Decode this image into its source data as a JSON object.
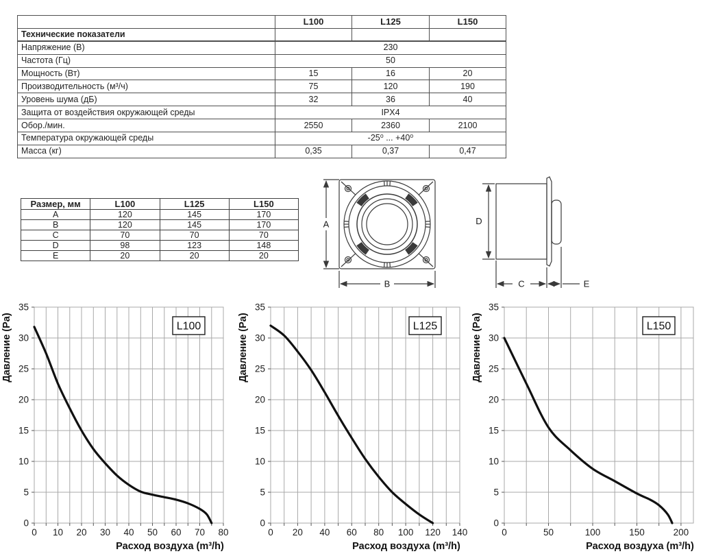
{
  "spec_table": {
    "section_header": "Технические показатели",
    "models": [
      "L100",
      "L125",
      "L150"
    ],
    "rows": [
      {
        "label": "Напряжение (В)",
        "span": true,
        "values": [
          "230"
        ]
      },
      {
        "label": "Частота (Гц)",
        "span": true,
        "values": [
          "50"
        ]
      },
      {
        "label": "Мощность (Вт)",
        "values": [
          "15",
          "16",
          "20"
        ]
      },
      {
        "label": "Производительность (м³/ч)",
        "values": [
          "75",
          "120",
          "190"
        ]
      },
      {
        "label": "Уровень шума (дБ)",
        "values": [
          "32",
          "36",
          "40"
        ]
      },
      {
        "label": "Защита от воздействия  окружающей среды",
        "span": true,
        "values": [
          "IPX4"
        ]
      },
      {
        "label": "Обор./мин.",
        "values": [
          "2550",
          "2360",
          "2100"
        ]
      },
      {
        "label": "Температура окружающей среды",
        "span": true,
        "values": [
          "-25⁰ ... +40⁰"
        ]
      },
      {
        "label": "Масса (кг)",
        "values": [
          "0,35",
          "0,37",
          "0,47"
        ]
      }
    ]
  },
  "dim_table": {
    "header": [
      "Размер, мм",
      "L100",
      "L125",
      "L150"
    ],
    "rows": [
      [
        "A",
        "120",
        "145",
        "170"
      ],
      [
        "B",
        "120",
        "145",
        "170"
      ],
      [
        "C",
        "70",
        "70",
        "70"
      ],
      [
        "D",
        "98",
        "123",
        "148"
      ],
      [
        "E",
        "20",
        "20",
        "20"
      ]
    ]
  },
  "drawings": {
    "front": {
      "a_label": "A",
      "b_label": "B"
    },
    "side": {
      "d_label": "D",
      "c_label": "C",
      "e_label": "E"
    }
  },
  "chart_data": [
    {
      "type": "line",
      "title": "L100",
      "xlabel": "Расход воздуха (m³/h)",
      "ylabel": "Давление (Pa)",
      "xlim": [
        0,
        80
      ],
      "ylim": [
        0,
        35
      ],
      "x_label_step": 10,
      "x_grid_step": 5,
      "y_label_step": 5,
      "y_grid_step": 5,
      "grid": true,
      "legend": "none",
      "points": [
        [
          0,
          31.8
        ],
        [
          5,
          27.5
        ],
        [
          10,
          22.6
        ],
        [
          15,
          18.6
        ],
        [
          20,
          15
        ],
        [
          25,
          12
        ],
        [
          30,
          9.7
        ],
        [
          35,
          7.7
        ],
        [
          40,
          6.2
        ],
        [
          45,
          5.1
        ],
        [
          50,
          4.6
        ],
        [
          55,
          4.2
        ],
        [
          60,
          3.8
        ],
        [
          65,
          3.2
        ],
        [
          70,
          2.3
        ],
        [
          73,
          1.4
        ],
        [
          75,
          0
        ]
      ]
    },
    {
      "type": "line",
      "title": "L125",
      "xlabel": "Расход воздуха (m³/h)",
      "ylabel": "Давление (Pa)",
      "xlim": [
        0,
        140
      ],
      "ylim": [
        0,
        35
      ],
      "x_label_step": 20,
      "x_grid_step": 10,
      "y_label_step": 5,
      "y_grid_step": 5,
      "grid": true,
      "legend": "none",
      "points": [
        [
          0,
          32
        ],
        [
          10,
          30.4
        ],
        [
          20,
          27.8
        ],
        [
          30,
          24.8
        ],
        [
          40,
          21.2
        ],
        [
          50,
          17.4
        ],
        [
          60,
          13.8
        ],
        [
          70,
          10.4
        ],
        [
          80,
          7.5
        ],
        [
          90,
          5
        ],
        [
          100,
          3.1
        ],
        [
          110,
          1.4
        ],
        [
          120,
          0
        ]
      ]
    },
    {
      "type": "line",
      "title": "L150",
      "xlabel": "Расход воздуха (m³/h)",
      "ylabel": "Давление (Pa)",
      "xlim": [
        0,
        214
      ],
      "ylim": [
        0,
        35
      ],
      "x_label_step": 50,
      "x_grid_step": 25,
      "y_label_step": 5,
      "y_grid_step": 5,
      "grid": true,
      "legend": "none",
      "points": [
        [
          0,
          30
        ],
        [
          25,
          22.6
        ],
        [
          50,
          15.5
        ],
        [
          75,
          11.8
        ],
        [
          100,
          8.8
        ],
        [
          125,
          6.8
        ],
        [
          150,
          4.8
        ],
        [
          165,
          3.8
        ],
        [
          175,
          2.9
        ],
        [
          185,
          1.4
        ],
        [
          190,
          0
        ]
      ]
    }
  ],
  "colors": {
    "curve": "#111111",
    "grid": "#a8a8a8",
    "tick": "#555555",
    "line_art": "#3a3a3a",
    "text": "#1c1c1c"
  }
}
